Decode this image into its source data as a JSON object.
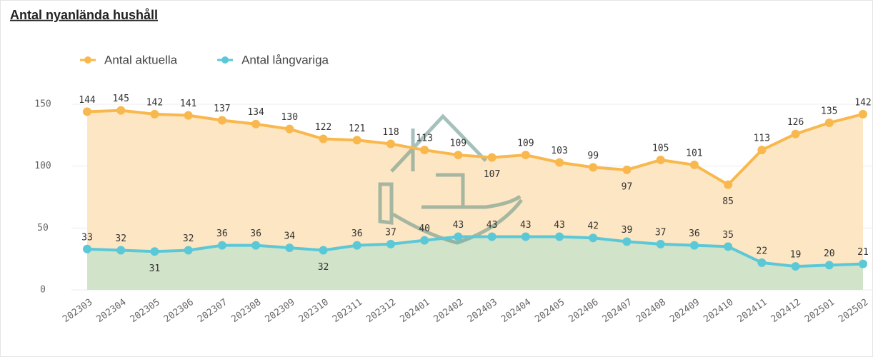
{
  "chart_data": {
    "type": "line",
    "title": "Antal nyanlända hushåll",
    "categories": [
      "202303",
      "202304",
      "202305",
      "202306",
      "202307",
      "202308",
      "202309",
      "202310",
      "202311",
      "202312",
      "202401",
      "202402",
      "202403",
      "202404",
      "202405",
      "202406",
      "202407",
      "202408",
      "202409",
      "202410",
      "202411",
      "202412",
      "202501",
      "202502"
    ],
    "series": [
      {
        "name": "Antal aktuella",
        "color": "#f8b84e",
        "area_color": "#fde6c3",
        "values": [
          144,
          145,
          142,
          141,
          137,
          134,
          130,
          122,
          121,
          118,
          113,
          109,
          107,
          109,
          103,
          99,
          97,
          105,
          101,
          85,
          113,
          126,
          135,
          142
        ]
      },
      {
        "name": "Antal långvariga",
        "color": "#5bc8d8",
        "area_color": "#d1e3c9",
        "values": [
          33,
          32,
          31,
          32,
          36,
          36,
          34,
          32,
          36,
          37,
          40,
          43,
          43,
          43,
          43,
          42,
          39,
          37,
          36,
          35,
          22,
          19,
          20,
          21
        ]
      }
    ],
    "ylim": [
      0,
      165
    ],
    "yticks": [
      0,
      50,
      100,
      150
    ],
    "grid": true,
    "legend": "top-left"
  }
}
